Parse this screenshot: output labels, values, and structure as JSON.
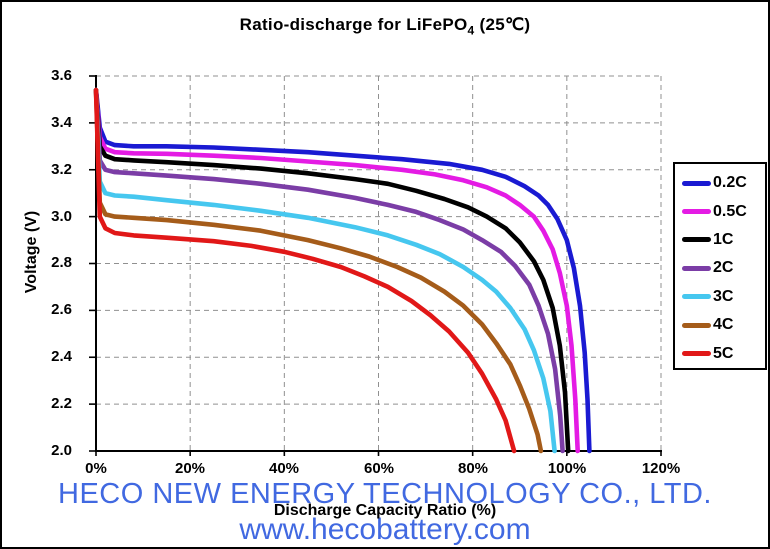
{
  "title": {
    "main": "Ratio-discharge for LiFePO",
    "subscript": "4",
    "suffix": " (25℃)"
  },
  "axes": {
    "x": {
      "label": "Discharge Capacity Ratio (%)",
      "ticks": [
        "0%",
        "20%",
        "40%",
        "60%",
        "80%",
        "100%",
        "120%"
      ]
    },
    "y": {
      "label": "Voltage  (V)",
      "ticks": [
        "3.6",
        "3.4",
        "3.2",
        "3.0",
        "2.8",
        "2.6",
        "2.4",
        "2.2",
        "2.0"
      ]
    }
  },
  "legend": {
    "items": [
      {
        "label": "0.2C",
        "color": "#1a1ad2"
      },
      {
        "label": "0.5C",
        "color": "#e41be4"
      },
      {
        "label": "1C",
        "color": "#000000"
      },
      {
        "label": "2C",
        "color": "#7b3da6"
      },
      {
        "label": "3C",
        "color": "#46c7ef"
      },
      {
        "label": "4C",
        "color": "#a55c1a"
      },
      {
        "label": "5C",
        "color": "#e11818"
      }
    ]
  },
  "watermark": {
    "line1": "HECO NEW ENERGY TECHNOLOGY  CO., LTD.",
    "line2": "www.hecobattery.com",
    "color": "#4169e1"
  },
  "chart_data": {
    "type": "line",
    "title": "Ratio-discharge for LiFePO4 (25℃)",
    "xlabel": "Discharge Capacity Ratio (%)",
    "ylabel": "Voltage (V)",
    "xlim": [
      0,
      120
    ],
    "ylim": [
      2.0,
      3.6
    ],
    "x_ticks": [
      0,
      20,
      40,
      60,
      80,
      100,
      120
    ],
    "y_ticks": [
      3.6,
      3.4,
      3.2,
      3.0,
      2.8,
      2.6,
      2.4,
      2.2,
      2.0
    ],
    "grid": true,
    "grid_color": "#909090",
    "legend_position": "right-outside",
    "series": [
      {
        "name": "0.2C",
        "color": "#1a1ad2",
        "points": [
          [
            0,
            3.54
          ],
          [
            0.8,
            3.38
          ],
          [
            2,
            3.32
          ],
          [
            4,
            3.305
          ],
          [
            8,
            3.3
          ],
          [
            15,
            3.3
          ],
          [
            25,
            3.295
          ],
          [
            35,
            3.285
          ],
          [
            45,
            3.275
          ],
          [
            55,
            3.26
          ],
          [
            65,
            3.245
          ],
          [
            75,
            3.225
          ],
          [
            82,
            3.2
          ],
          [
            87,
            3.17
          ],
          [
            91,
            3.13
          ],
          [
            94,
            3.09
          ],
          [
            96,
            3.05
          ],
          [
            98,
            2.99
          ],
          [
            100,
            2.9
          ],
          [
            101.5,
            2.78
          ],
          [
            102.8,
            2.62
          ],
          [
            103.8,
            2.42
          ],
          [
            104.4,
            2.22
          ],
          [
            104.8,
            2.0
          ]
        ]
      },
      {
        "name": "0.5C",
        "color": "#e41be4",
        "points": [
          [
            0,
            3.54
          ],
          [
            0.8,
            3.34
          ],
          [
            2,
            3.29
          ],
          [
            4,
            3.275
          ],
          [
            8,
            3.27
          ],
          [
            15,
            3.268
          ],
          [
            25,
            3.26
          ],
          [
            35,
            3.25
          ],
          [
            45,
            3.235
          ],
          [
            55,
            3.22
          ],
          [
            65,
            3.2
          ],
          [
            72,
            3.18
          ],
          [
            78,
            3.155
          ],
          [
            83,
            3.125
          ],
          [
            87,
            3.09
          ],
          [
            90,
            3.05
          ],
          [
            93,
            3.0
          ],
          [
            95,
            2.94
          ],
          [
            97,
            2.86
          ],
          [
            98.5,
            2.76
          ],
          [
            100,
            2.62
          ],
          [
            101,
            2.45
          ],
          [
            101.8,
            2.22
          ],
          [
            102.3,
            2.0
          ]
        ]
      },
      {
        "name": "1C",
        "color": "#000000",
        "points": [
          [
            0,
            3.54
          ],
          [
            0.8,
            3.3
          ],
          [
            2,
            3.26
          ],
          [
            4,
            3.245
          ],
          [
            8,
            3.24
          ],
          [
            15,
            3.232
          ],
          [
            25,
            3.22
          ],
          [
            35,
            3.205
          ],
          [
            45,
            3.185
          ],
          [
            55,
            3.16
          ],
          [
            62,
            3.14
          ],
          [
            68,
            3.11
          ],
          [
            74,
            3.075
          ],
          [
            79,
            3.04
          ],
          [
            83,
            3.0
          ],
          [
            87,
            2.95
          ],
          [
            90,
            2.89
          ],
          [
            93,
            2.81
          ],
          [
            95,
            2.73
          ],
          [
            97,
            2.61
          ],
          [
            98.5,
            2.45
          ],
          [
            99.6,
            2.25
          ],
          [
            100.3,
            2.0
          ]
        ]
      },
      {
        "name": "2C",
        "color": "#7b3da6",
        "points": [
          [
            0,
            3.54
          ],
          [
            0.8,
            3.24
          ],
          [
            2,
            3.2
          ],
          [
            4,
            3.19
          ],
          [
            8,
            3.185
          ],
          [
            15,
            3.175
          ],
          [
            25,
            3.16
          ],
          [
            35,
            3.14
          ],
          [
            45,
            3.115
          ],
          [
            55,
            3.08
          ],
          [
            62,
            3.05
          ],
          [
            68,
            3.02
          ],
          [
            73,
            2.985
          ],
          [
            78,
            2.945
          ],
          [
            82,
            2.9
          ],
          [
            86,
            2.85
          ],
          [
            89,
            2.79
          ],
          [
            92,
            2.71
          ],
          [
            94,
            2.62
          ],
          [
            96,
            2.5
          ],
          [
            97.5,
            2.35
          ],
          [
            98.6,
            2.15
          ],
          [
            99.1,
            2.0
          ]
        ]
      },
      {
        "name": "3C",
        "color": "#46c7ef",
        "points": [
          [
            0,
            3.54
          ],
          [
            0.8,
            3.15
          ],
          [
            2,
            3.1
          ],
          [
            4,
            3.09
          ],
          [
            8,
            3.085
          ],
          [
            15,
            3.07
          ],
          [
            25,
            3.05
          ],
          [
            35,
            3.025
          ],
          [
            45,
            2.995
          ],
          [
            55,
            2.955
          ],
          [
            62,
            2.92
          ],
          [
            68,
            2.88
          ],
          [
            73,
            2.84
          ],
          [
            78,
            2.785
          ],
          [
            82,
            2.73
          ],
          [
            85,
            2.68
          ],
          [
            88,
            2.61
          ],
          [
            91,
            2.52
          ],
          [
            93,
            2.43
          ],
          [
            95,
            2.31
          ],
          [
            96.5,
            2.17
          ],
          [
            97.4,
            2.0
          ]
        ]
      },
      {
        "name": "4C",
        "color": "#a55c1a",
        "points": [
          [
            0,
            3.54
          ],
          [
            0.8,
            3.06
          ],
          [
            2,
            3.01
          ],
          [
            4,
            3.0
          ],
          [
            8,
            2.995
          ],
          [
            15,
            2.985
          ],
          [
            25,
            2.965
          ],
          [
            35,
            2.94
          ],
          [
            45,
            2.9
          ],
          [
            52,
            2.865
          ],
          [
            58,
            2.83
          ],
          [
            64,
            2.785
          ],
          [
            69,
            2.74
          ],
          [
            74,
            2.68
          ],
          [
            78,
            2.62
          ],
          [
            82,
            2.54
          ],
          [
            85,
            2.46
          ],
          [
            88,
            2.37
          ],
          [
            90,
            2.28
          ],
          [
            92,
            2.18
          ],
          [
            93.8,
            2.07
          ],
          [
            94.5,
            2.0
          ]
        ]
      },
      {
        "name": "5C",
        "color": "#e11818",
        "points": [
          [
            0,
            3.54
          ],
          [
            0.8,
            3.0
          ],
          [
            2,
            2.95
          ],
          [
            4,
            2.93
          ],
          [
            8,
            2.92
          ],
          [
            15,
            2.91
          ],
          [
            25,
            2.895
          ],
          [
            33,
            2.875
          ],
          [
            40,
            2.85
          ],
          [
            46,
            2.82
          ],
          [
            52,
            2.785
          ],
          [
            57,
            2.745
          ],
          [
            62,
            2.7
          ],
          [
            67,
            2.64
          ],
          [
            71,
            2.58
          ],
          [
            75,
            2.51
          ],
          [
            79,
            2.42
          ],
          [
            82,
            2.33
          ],
          [
            85,
            2.22
          ],
          [
            87,
            2.13
          ],
          [
            88.8,
            2.0
          ]
        ]
      }
    ]
  }
}
